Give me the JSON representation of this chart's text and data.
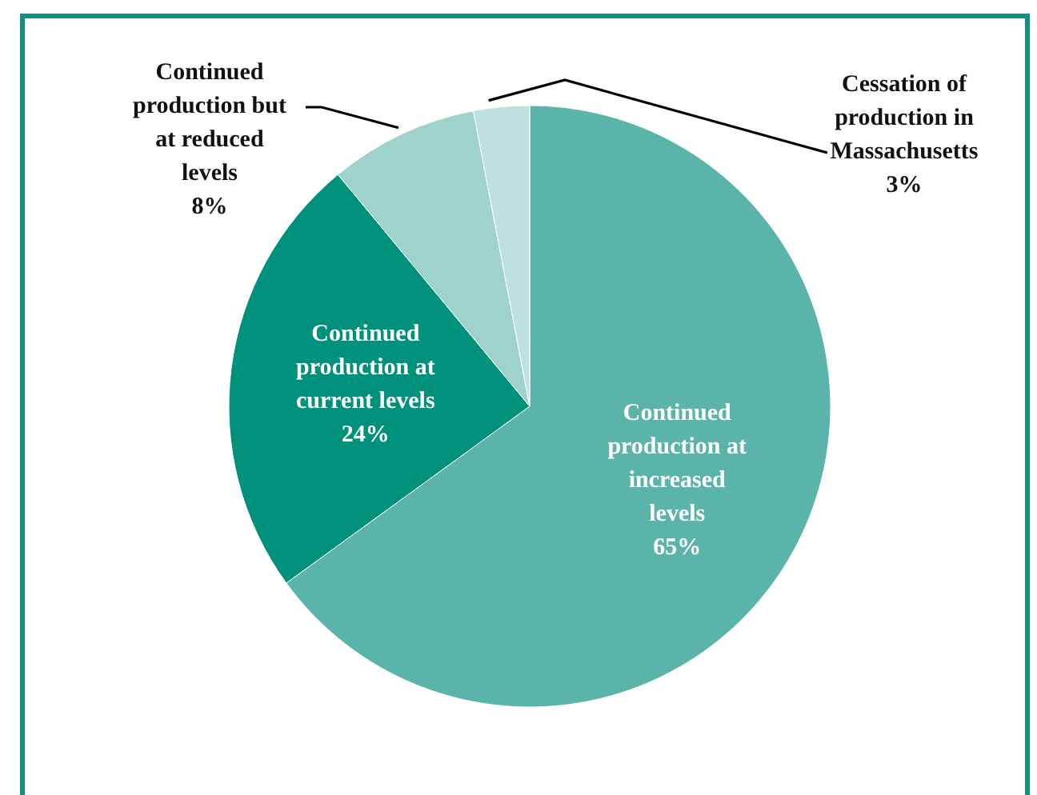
{
  "chart_data": {
    "type": "pie",
    "categories": [
      "Continued production at increased levels",
      "Continued production at current levels",
      "Continued production but at reduced levels",
      "Cessation of production in Massachusetts"
    ],
    "values": [
      65,
      24,
      8,
      3
    ],
    "colors": [
      "#5ab4a9",
      "#00917c",
      "#9ed2cb",
      "#bfe1dd"
    ],
    "value_labels": [
      "65%",
      "24%",
      "8%",
      "3%"
    ]
  }
}
